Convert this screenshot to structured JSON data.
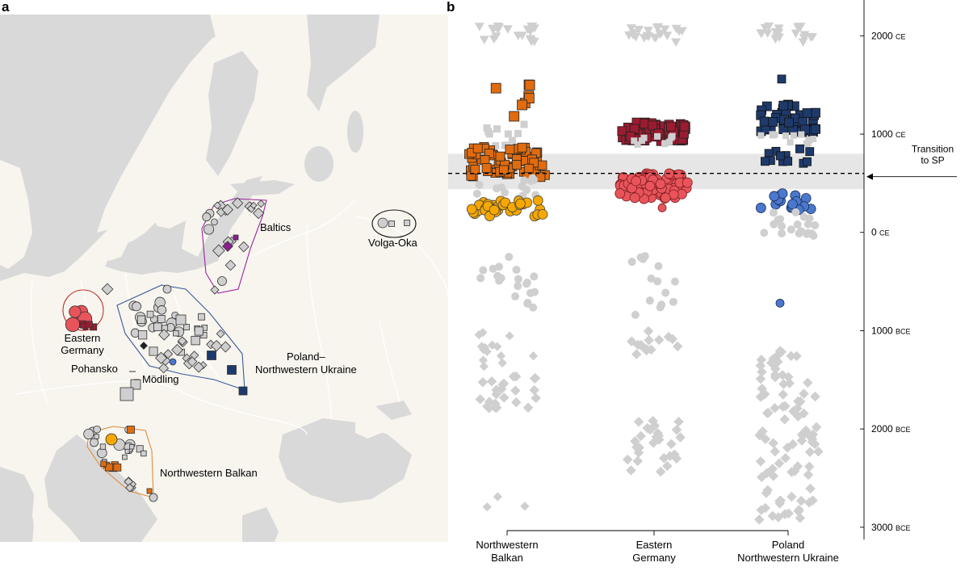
{
  "panels": {
    "a": "a",
    "b": "b"
  },
  "colors": {
    "sea": "#d9d9d9",
    "land": "#f7f5ee",
    "river": "#ffffff",
    "grey_point": "#cfcfcf",
    "orange": "#e06c0f",
    "yellow": "#f6a800",
    "red_square": "#9b1b30",
    "red_circle": "#e9545b",
    "navy": "#1e3a6b",
    "blue": "#4a78cc",
    "purple": "#8b1f8e",
    "balkan_outline": "#e08a3a",
    "poland_outline": "#3a5a99",
    "baltic_outline": "#a020a0",
    "germany_outline": "#c03030",
    "transition_band": "#e6e6e6"
  },
  "map": {
    "labels": {
      "baltics": "Baltics",
      "volga_oka": "Volga-Oka",
      "eastern_germany_1": "Eastern",
      "eastern_germany_2": "Germany",
      "poland_1": "Poland–",
      "poland_2": "Northwestern Ukraine",
      "pohansko": "Pohansko",
      "modling": "Mödling",
      "nw_balkan": "Northwestern Balkan"
    }
  },
  "chart_data": {
    "type": "scatter",
    "y_axis_direction": "time increases upward",
    "ylim": [
      3100,
      -2200
    ],
    "y_ticks": [
      {
        "value": -2000,
        "label": "2000",
        "era": "CE"
      },
      {
        "value": -1000,
        "label": "1000",
        "era": "CE"
      },
      {
        "value": 0,
        "label": "0",
        "era": "CE"
      },
      {
        "value": 1000,
        "label": "1000",
        "era": "BCE"
      },
      {
        "value": 2000,
        "label": "2000",
        "era": "BCE"
      },
      {
        "value": 3000,
        "label": "3000",
        "era": "BCE"
      }
    ],
    "categories": [
      {
        "line1": "Northwestern",
        "line2": "Balkan"
      },
      {
        "line1": "Eastern",
        "line2": "Germany"
      },
      {
        "line1": "Poland",
        "line2": "Northwestern Ukraine"
      }
    ],
    "transition": {
      "label_line1": "Transition",
      "label_line2": "to SP",
      "value_bp": 600,
      "band": [
        440,
        800
      ]
    }
  }
}
